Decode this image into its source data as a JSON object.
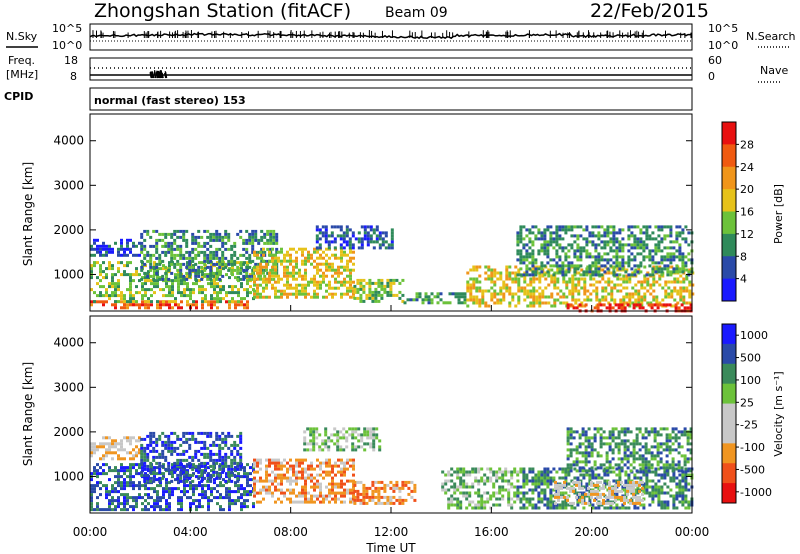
{
  "header": {
    "station": "Zhongshan Station (fitACF)",
    "beam": "Beam 09",
    "date": "22/Feb/2015"
  },
  "noise_panel": {
    "left_label": "N.Sky",
    "left_ticks": [
      "10^5",
      "10^0"
    ],
    "right_label": "N.Search",
    "right_ticks": [
      "10^5",
      "10^0"
    ]
  },
  "freq_panel": {
    "left_label_1": "Freq.",
    "left_label_2": "[MHz]",
    "left_ticks": [
      "18",
      "8"
    ],
    "right_label": "Nave",
    "right_ticks": [
      "60",
      "0"
    ]
  },
  "cpid": {
    "label": "CPID",
    "text": "normal (fast stereo) 153"
  },
  "x_axis_title": "Time UT",
  "chart_data": [
    {
      "type": "heatmap",
      "title": "",
      "xlabel": "Time UT",
      "ylabel": "Slant Range [km]",
      "x_ticks": [
        "00:00",
        "04:00",
        "08:00",
        "12:00",
        "16:00",
        "20:00",
        "00:00"
      ],
      "y_ticks": [
        1000,
        2000,
        3000,
        4000
      ],
      "xlim": [
        0,
        24
      ],
      "ylim": [
        180,
        4600
      ],
      "colorbar": {
        "label": "Power [dB]",
        "ticks": [
          "4",
          "8",
          "12",
          "16",
          "20",
          "24",
          "28"
        ],
        "range": [
          0,
          30
        ],
        "colors": [
          "#1a1aff",
          "#2a4aa8",
          "#2f8a5a",
          "#6cc23a",
          "#e6c21a",
          "#f0951a",
          "#f05a10",
          "#e81010"
        ]
      },
      "scatter_regions_note": "Backscatter pattern, approximate",
      "regions": [
        {
          "t0": 0.0,
          "t1": 6.3,
          "r0": 250,
          "r1": 420,
          "level": 6
        },
        {
          "t0": 0.0,
          "t1": 6.5,
          "r0": 420,
          "r1": 1300,
          "level": 3
        },
        {
          "t0": 0.0,
          "t1": 2.0,
          "r0": 1400,
          "r1": 1800,
          "level": 1
        },
        {
          "t0": 2.0,
          "t1": 7.5,
          "r0": 900,
          "r1": 2000,
          "level": 2
        },
        {
          "t0": 6.5,
          "t1": 10.5,
          "r0": 500,
          "r1": 1600,
          "level": 4
        },
        {
          "t0": 9.0,
          "t1": 12.0,
          "r0": 1600,
          "r1": 2100,
          "level": 1
        },
        {
          "t0": 10.5,
          "t1": 12.5,
          "r0": 400,
          "r1": 900,
          "level": 3
        },
        {
          "t0": 12.5,
          "t1": 15.0,
          "r0": 350,
          "r1": 600,
          "level": 2
        },
        {
          "t0": 15.0,
          "t1": 24.0,
          "r0": 300,
          "r1": 1200,
          "level": 4
        },
        {
          "t0": 17.0,
          "t1": 24.0,
          "r0": 1000,
          "r1": 2100,
          "level": 2
        },
        {
          "t0": 19.0,
          "t1": 24.0,
          "r0": 200,
          "r1": 350,
          "level": 7
        }
      ]
    },
    {
      "type": "heatmap",
      "title": "",
      "xlabel": "Time UT",
      "ylabel": "Slant Range [km]",
      "x_ticks": [
        "00:00",
        "04:00",
        "08:00",
        "12:00",
        "16:00",
        "20:00",
        "00:00"
      ],
      "y_ticks": [
        1000,
        2000,
        3000,
        4000
      ],
      "xlim": [
        0,
        24
      ],
      "ylim": [
        180,
        4600
      ],
      "colorbar": {
        "label": "Velocity [m s⁻¹]",
        "ticks": [
          "1000",
          "500",
          "100",
          "25",
          "-25",
          "-100",
          "-500",
          "-1000"
        ],
        "range": [
          -1200,
          1200
        ],
        "colors": [
          "#e81010",
          "#f0501a",
          "#f09520",
          "#c8c8c8",
          "#c8c8c8",
          "#6cc23a",
          "#3a8a5a",
          "#2a4aa8",
          "#1a1aff"
        ]
      },
      "regions": [
        {
          "t0": 0.0,
          "t1": 6.5,
          "r0": 250,
          "r1": 1300,
          "level": 7
        },
        {
          "t0": 0.0,
          "t1": 2.0,
          "r0": 1400,
          "r1": 1900,
          "level": 3
        },
        {
          "t0": 2.0,
          "t1": 6.0,
          "r0": 900,
          "r1": 2000,
          "level": 7
        },
        {
          "t0": 6.5,
          "t1": 10.5,
          "r0": 400,
          "r1": 1400,
          "level": 2
        },
        {
          "t0": 8.5,
          "t1": 11.5,
          "r0": 1600,
          "r1": 2100,
          "level": 5
        },
        {
          "t0": 10.5,
          "t1": 13.0,
          "r0": 400,
          "r1": 900,
          "level": 2
        },
        {
          "t0": 14.0,
          "t1": 17.0,
          "r0": 300,
          "r1": 1200,
          "level": 5
        },
        {
          "t0": 17.0,
          "t1": 24.0,
          "r0": 300,
          "r1": 1200,
          "level": 6
        },
        {
          "t0": 18.5,
          "t1": 22.0,
          "r0": 400,
          "r1": 900,
          "level": 3
        },
        {
          "t0": 19.0,
          "t1": 24.0,
          "r0": 1100,
          "r1": 2100,
          "level": 6
        }
      ]
    }
  ]
}
